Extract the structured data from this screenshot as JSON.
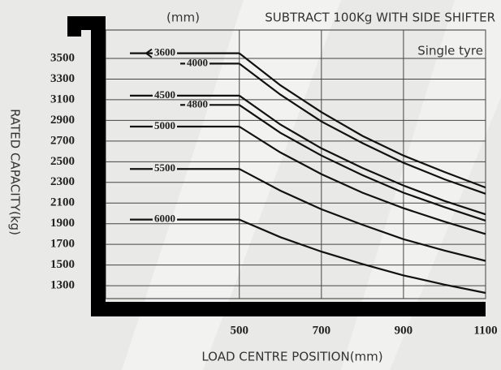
{
  "chart_data": {
    "type": "line",
    "title": "SUBTRACT 100Kg WITH SIDE SHIFTER",
    "series_unit": "(mm)",
    "annotation": "Single tyre",
    "x_label": "LOAD CENTRE POSITION(mm)",
    "y_label": "RATED CAPACITY(kg)",
    "x": [
      500,
      600,
      700,
      800,
      900,
      1000,
      1100
    ],
    "series": [
      {
        "name": "3600",
        "color": "#111111",
        "values": [
          3550,
          3240,
          2980,
          2750,
          2560,
          2400,
          2250
        ]
      },
      {
        "name": "4000",
        "color": "#111111",
        "values": [
          3450,
          3150,
          2890,
          2680,
          2490,
          2330,
          2190
        ]
      },
      {
        "name": "4500",
        "color": "#111111",
        "values": [
          3140,
          2860,
          2630,
          2440,
          2270,
          2120,
          1990
        ]
      },
      {
        "name": "4800",
        "color": "#111111",
        "values": [
          3050,
          2780,
          2560,
          2370,
          2200,
          2060,
          1930
        ]
      },
      {
        "name": "5000",
        "color": "#111111",
        "values": [
          2840,
          2590,
          2380,
          2200,
          2050,
          1920,
          1800
        ]
      },
      {
        "name": "5500",
        "color": "#111111",
        "values": [
          2430,
          2220,
          2040,
          1890,
          1750,
          1640,
          1540
        ]
      },
      {
        "name": "6000",
        "color": "#111111",
        "values": [
          1940,
          1770,
          1630,
          1510,
          1400,
          1310,
          1230
        ]
      }
    ],
    "xlim": [
      180,
      1100
    ],
    "xticks": [
      500,
      700,
      900,
      1100
    ],
    "ylim": [
      1175,
      3775
    ],
    "yticks": [
      1300,
      1500,
      1700,
      1900,
      2100,
      2300,
      2500,
      2700,
      2900,
      3100,
      3300,
      3500
    ],
    "grid": true
  }
}
